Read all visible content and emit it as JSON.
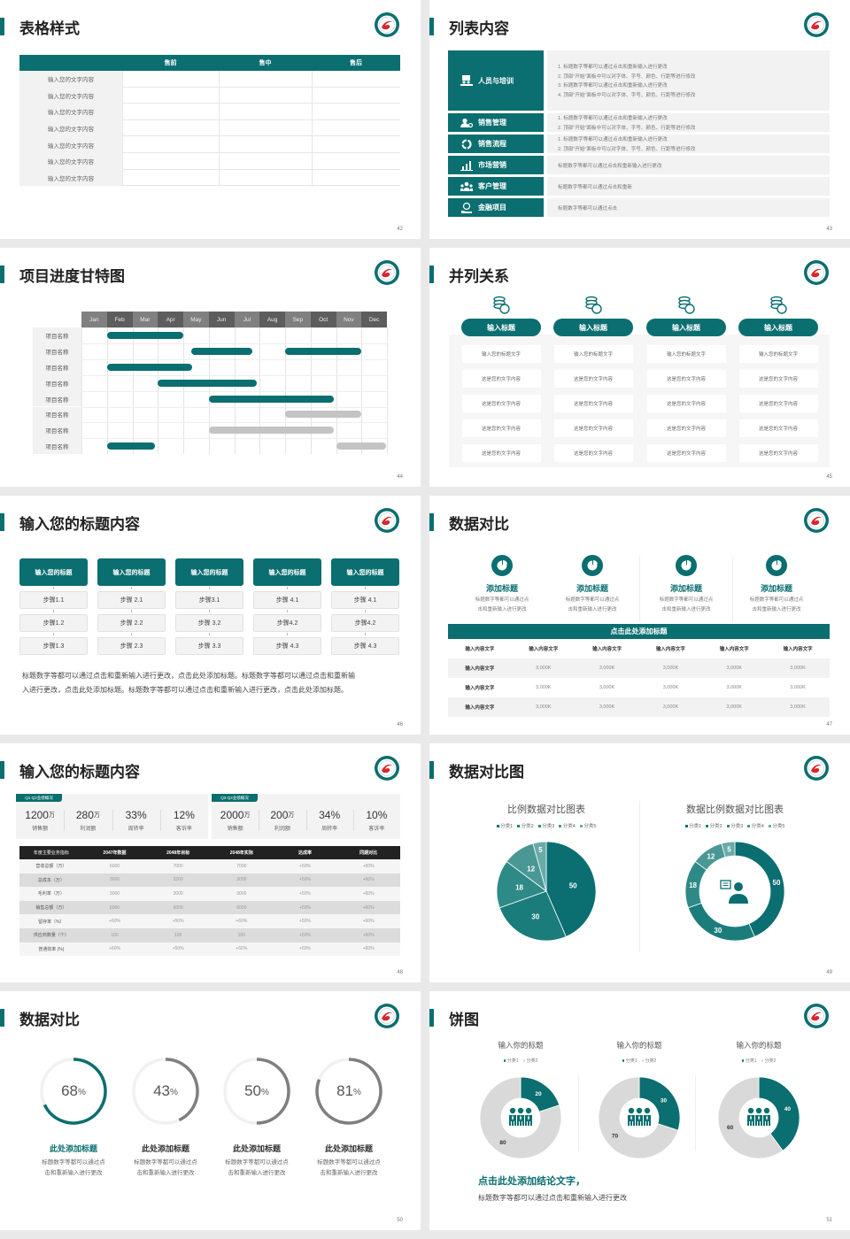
{
  "colors": {
    "accent": "#0b6e70",
    "accent_light": "#4c9b98",
    "gray_bar": "#c4c4c4",
    "donut_gray": "#d9d9d9",
    "ring_gray": "#7f7f7f",
    "logo_red": "#d8262e"
  },
  "slides": [
    {
      "type": "table",
      "title": "表格样式",
      "page": "42",
      "columns": [
        "售前",
        "售中",
        "售后"
      ],
      "rows": [
        "输入您的文字内容",
        "输入您的文字内容",
        "输入您的文字内容",
        "输入您的文字内容",
        "输入您的文字内容",
        "输入您的文字内容",
        "输入您的文字内容"
      ]
    },
    {
      "type": "list",
      "title": "列表内容",
      "page": "43",
      "rows": [
        {
          "label": "人员与培训",
          "icon": "presenter-icon",
          "lines": [
            "1.   标题数字等都可以通过点击和重新输入进行更改",
            "2.   顶部“开始”面板中可以对字体、字号、颜色、行距等进行修改",
            "3.   标题数字等都可以通过点击和重新输入进行更改",
            "4.   顶部“开始”面板中可以对字体、字号、颜色、行距等进行修改"
          ]
        },
        {
          "label": "销售管理",
          "icon": "person-gear-icon",
          "lines": [
            "1.   标题数字等都可以通过点击和重新输入进行更改",
            "2.   顶部“开始”面板中可以对字体、字号、颜色、行距等进行修改"
          ]
        },
        {
          "label": "销售流程",
          "icon": "cycle-icon",
          "lines": [
            "1.   标题数字等都可以通过点击和重新输入进行更改",
            "2.   顶部“开始”面板中可以对字体、字号、颜色、行距等进行修改"
          ]
        },
        {
          "label": "市场营销",
          "icon": "bar-chart-icon",
          "lines": [
            "标题数字等都可以通过点击和重新输入进行更改"
          ]
        },
        {
          "label": "客户管理",
          "icon": "group-icon",
          "lines": [
            "标题数字等都可以通过点击和重新"
          ]
        },
        {
          "label": "金融项目",
          "icon": "money-hand-icon",
          "lines": [
            "标题数字等都可以通过点击"
          ]
        }
      ]
    },
    {
      "type": "gantt",
      "title": "项目进度甘特图",
      "page": "44",
      "months": [
        "Jan",
        "Feb",
        "Mar",
        "Apr",
        "May",
        "Jun",
        "Jul",
        "Aug",
        "Sep",
        "Oct",
        "Nov",
        "Dec"
      ],
      "rows": [
        {
          "label": "项目名称",
          "bars": [
            {
              "start": 1,
              "end": 4,
              "status": "active"
            }
          ]
        },
        {
          "label": "项目名称",
          "bars": [
            {
              "start": 4.3,
              "end": 6.7,
              "status": "active"
            },
            {
              "start": 8,
              "end": 11,
              "status": "active"
            }
          ]
        },
        {
          "label": "项目名称",
          "bars": [
            {
              "start": 1,
              "end": 4.35,
              "status": "active"
            }
          ]
        },
        {
          "label": "项目名称",
          "bars": [
            {
              "start": 3,
              "end": 6.9,
              "status": "active"
            }
          ]
        },
        {
          "label": "项目名称",
          "bars": [
            {
              "start": 5,
              "end": 9.9,
              "status": "active"
            }
          ]
        },
        {
          "label": "项目名称",
          "bars": [
            {
              "start": 8,
              "end": 11,
              "status": "planned"
            }
          ]
        },
        {
          "label": "项目名称",
          "bars": [
            {
              "start": 5,
              "end": 9.9,
              "status": "planned"
            }
          ]
        },
        {
          "label": "项目名称",
          "bars": [
            {
              "start": 1,
              "end": 2.9,
              "status": "active"
            },
            {
              "start": 10,
              "end": 11.95,
              "status": "planned"
            }
          ]
        }
      ]
    },
    {
      "type": "parallel",
      "title": "并列关系",
      "page": "45",
      "columns": [
        {
          "heading": "输入标题",
          "cells": [
            "输入您的标题文字",
            "这是您的文字内容",
            "这是您的文字内容",
            "这是您的文字内容",
            "这是您的文字内容"
          ]
        },
        {
          "heading": "输入标题",
          "cells": [
            "输入您的标题文字",
            "这是您的文字内容",
            "这是您的文字内容",
            "这是您的文字内容",
            "这是您的文字内容"
          ]
        },
        {
          "heading": "输入标题",
          "cells": [
            "输入您的标题文字",
            "这是您的文字内容",
            "这是您的文字内容",
            "这是您的文字内容",
            "这是您的文字内容"
          ]
        },
        {
          "heading": "输入标题",
          "cells": [
            "输入您的标题文字",
            "这是您的文字内容",
            "这是您的文字内容",
            "这是您的文字内容",
            "这是您的文字内容"
          ]
        }
      ]
    },
    {
      "type": "steps",
      "title": "输入您的标题内容",
      "page": "46",
      "columns": [
        {
          "heading": "输入您的标题",
          "steps": [
            "步骤1.1",
            "步骤1.2",
            "步骤1.3"
          ]
        },
        {
          "heading": "输入您的标题",
          "steps": [
            "步骤 2.1",
            "步骤 2.2",
            "步骤 2.3"
          ]
        },
        {
          "heading": "输入您的标题",
          "steps": [
            "步骤3.1",
            "步骤 3.2",
            "步骤 3.3"
          ]
        },
        {
          "heading": "输入您的标题",
          "steps": [
            "步骤 4.1",
            "步骤4.2",
            "步骤 4.3"
          ]
        },
        {
          "heading": "输入您的标题",
          "steps": [
            "步骤 4.1",
            "步骤4.2",
            "步骤 4.3"
          ]
        }
      ],
      "paragraph": [
        "标题数字等都可以通过点击和重新输入进行更改，点击此处添加标题。标题数字等都可以通过点击和重新输",
        "入进行更改，点击此处添加标题。标题数字等都可以通过点击和重新输入进行更改，点击此处添加标题。"
      ]
    },
    {
      "type": "compare",
      "title": "数据对比",
      "page": "47",
      "features": [
        {
          "title": "添加标题",
          "desc": [
            "标题数字等都可以通过点",
            "击和重新输入进行更改"
          ]
        },
        {
          "title": "添加标题",
          "desc": [
            "标题数字等都可以通过点",
            "击和重新输入进行更改"
          ]
        },
        {
          "title": "添加标题",
          "desc": [
            "标题数字等都可以通过点",
            "击和重新输入进行更改"
          ]
        },
        {
          "title": "添加标题",
          "desc": [
            "标题数字等都可以通过点",
            "击和重新输入进行更改"
          ]
        }
      ],
      "table_title": "点击此处添加标题",
      "header": [
        "输入内容文字",
        "输入内容文字",
        "输入内容文字",
        "输入内容文字",
        "输入内容文字",
        "输入内容文字"
      ],
      "rows": [
        [
          "输入内容文字",
          "3,000K",
          "3,000K",
          "3,000K",
          "3,000K",
          "3,000K"
        ],
        [
          "输入内容文字",
          "3,000K",
          "3,000K",
          "3,000K",
          "3,000K",
          "3,000K"
        ],
        [
          "输入内容文字",
          "3,000K",
          "3,000K",
          "3,000K",
          "3,000K",
          "3,000K"
        ]
      ]
    },
    {
      "type": "kpi",
      "title": "输入您的标题内容",
      "page": "48",
      "panels": [
        {
          "tag": "Q1-Q2业绩概况",
          "items": [
            {
              "value": "1200",
              "unit": "万",
              "label": "销售额"
            },
            {
              "value": "280",
              "unit": "万",
              "label": "利润额"
            },
            {
              "value": "33%",
              "unit": "",
              "label": "周转率"
            },
            {
              "value": "12%",
              "unit": "",
              "label": "客诉率"
            }
          ]
        },
        {
          "tag": "Q3-Q4业绩概况",
          "items": [
            {
              "value": "2000",
              "unit": "万",
              "label": "销售额"
            },
            {
              "value": "200",
              "unit": "万",
              "label": "利润额"
            },
            {
              "value": "34%",
              "unit": "",
              "label": "周转率"
            },
            {
              "value": "10%",
              "unit": "",
              "label": "客诉率"
            }
          ]
        }
      ],
      "header": [
        "年度主要业务指标",
        "2047年数据",
        "2048年目标",
        "2048年实际",
        "达成率",
        "同期对比"
      ],
      "rows": [
        [
          "营收总额（万）",
          "6000",
          "7000",
          "7000",
          "+50%",
          "+60%"
        ],
        [
          "总成本（万）",
          "3000",
          "3200",
          "3000",
          "+50%",
          "+60%"
        ],
        [
          "毛利率（万）",
          "3000",
          "3000",
          "3000",
          "+50%",
          "+60%"
        ],
        [
          "销售总额（万）",
          "6000",
          "6000",
          "6000",
          "+50%",
          "+60%"
        ],
        [
          "留存率（%）",
          "+60%",
          "+50%",
          "+60%",
          "+50%",
          "+60%"
        ],
        [
          "供应商数量（个）",
          "100",
          "100",
          "100",
          "+50%",
          "+60%"
        ],
        [
          "普通效率 (%)",
          "+60%",
          "+50%",
          "+60%",
          "+50%",
          "+60%"
        ]
      ]
    },
    {
      "type": "pies",
      "title": "数据对比图",
      "page": "49",
      "charts": [
        {
          "type": "pie",
          "title": "比例数据对比图表",
          "legend": [
            "分类1",
            "分类2",
            "分类3",
            "分类4",
            "分类5"
          ],
          "values": [
            50,
            30,
            18,
            12,
            5
          ],
          "colors": [
            "#0b6e70",
            "#1b7d7b",
            "#2e8a87",
            "#4a9895",
            "#68aba8"
          ]
        },
        {
          "type": "donut",
          "title": "数据比例数据对比图表",
          "legend": [
            "分类1",
            "分类2",
            "分类3",
            "分类4",
            "分类5"
          ],
          "values": [
            50,
            30,
            18,
            12,
            5
          ],
          "colors": [
            "#0b6e70",
            "#1b7d7b",
            "#2e8a87",
            "#4a9895",
            "#68aba8"
          ],
          "center_icon": "customer-service-icon"
        }
      ]
    },
    {
      "type": "rings",
      "title": "数据对比",
      "page": "50",
      "items": [
        {
          "percent": 68,
          "unit": "%",
          "title": "此处添加标题",
          "desc": [
            "标题数字等都可以通过点",
            "击和重新输入进行更改"
          ],
          "highlight": true
        },
        {
          "percent": 43,
          "unit": "%",
          "title": "此处添加标题",
          "desc": [
            "标题数字等都可以通过点",
            "击和重新输入进行更改"
          ],
          "highlight": false
        },
        {
          "percent": 50,
          "unit": "%",
          "title": "此处添加标题",
          "desc": [
            "标题数字等都可以通过点",
            "击和重新输入进行更改"
          ],
          "highlight": false
        },
        {
          "percent": 81,
          "unit": "%",
          "title": "此处添加标题",
          "desc": [
            "标题数字等都可以通过点",
            "击和重新输入进行更改"
          ],
          "highlight": false
        }
      ]
    },
    {
      "type": "donuts",
      "title": "饼图",
      "page": "51",
      "charts": [
        {
          "title": "输入你的标题",
          "legend": [
            "分类1",
            "分类2"
          ],
          "values": [
            20,
            80
          ]
        },
        {
          "title": "输入你的标题",
          "legend": [
            "分类1",
            "分类2"
          ],
          "values": [
            30,
            70
          ]
        },
        {
          "title": "输入你的标题",
          "legend": [
            "分类1",
            "分类2"
          ],
          "values": [
            40,
            60
          ]
        }
      ],
      "conclusion": "点击此处添加结论文字，",
      "body": "标题数字等都可以通过点击和重新输入进行更改"
    }
  ]
}
